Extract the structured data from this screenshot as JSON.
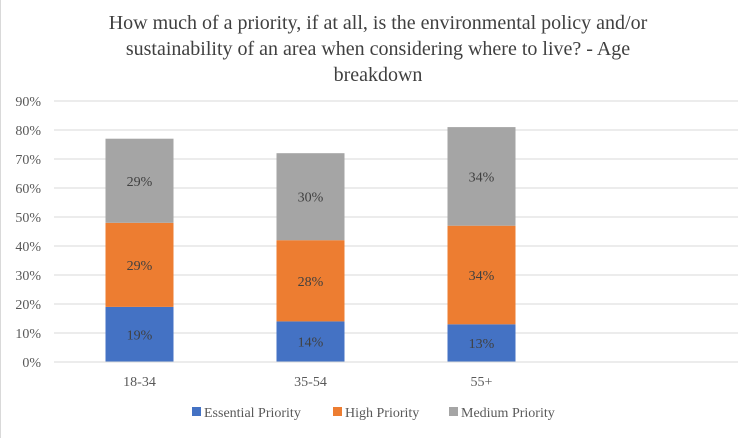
{
  "chart_data": {
    "type": "bar",
    "stacked": true,
    "title_lines": [
      "How much of a priority, if at all, is the environmental policy and/or",
      "sustainability of an area when considering where to live? - Age",
      "breakdown"
    ],
    "xlabel": "",
    "ylabel": "",
    "categories": [
      "18-34",
      "35-54",
      "55+"
    ],
    "series": [
      {
        "name": "Essential Priority",
        "values": [
          19,
          14,
          13
        ],
        "color": "#4472c4"
      },
      {
        "name": "High Priority",
        "values": [
          29,
          28,
          34
        ],
        "color": "#ed7d31"
      },
      {
        "name": "Medium Priority",
        "values": [
          29,
          30,
          34
        ],
        "color": "#a5a5a5"
      }
    ],
    "ylim": [
      0,
      90
    ],
    "yticks": [
      "0%",
      "10%",
      "20%",
      "30%",
      "40%",
      "50%",
      "60%",
      "70%",
      "80%",
      "90%"
    ],
    "value_format": "percent",
    "grid": true,
    "legend": "bottom",
    "gridline_color": "#d9d9d9"
  }
}
